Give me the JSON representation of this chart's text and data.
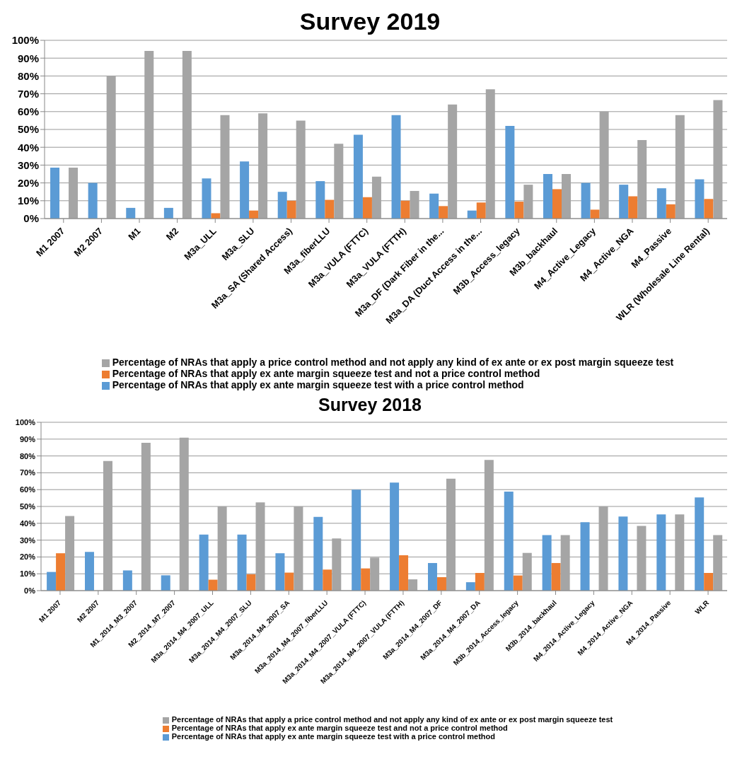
{
  "chart_data": [
    {
      "type": "bar",
      "title": "Survey 2019",
      "categories": [
        "M1 2007",
        "M2 2007",
        "M1",
        "M2",
        "M3a_ULL",
        "M3a_SLU",
        "M3a_SA (Shared Access)",
        "M3a_fiberLLU",
        "M3a_VULA (FTTC)",
        "M3a_VULA (FTTH)",
        "M3a_DF (Dark Fiber in the...",
        "M3a_DA (Duct Access in the...",
        "M3b_Access_legacy",
        "M3b_backhaul",
        "M4_Active_Legacy",
        "M4_Active_NGA",
        "M4_Passive",
        "WLR (Wholesale Line Rental)"
      ],
      "series": [
        {
          "name": "Percentage of NRAs that apply ex ante margin squeeze test with a price control method",
          "color": "#5b9bd5",
          "values": [
            28.6,
            20,
            6,
            6,
            22.5,
            32,
            15,
            21,
            47,
            58,
            14,
            4.5,
            52,
            25,
            20,
            19,
            17,
            22
          ]
        },
        {
          "name": "Percentage of NRAs that apply ex ante margin squeeze test and not a price control method",
          "color": "#ed7d31",
          "values": [
            0,
            0,
            0,
            0,
            3,
            4.5,
            10,
            10.5,
            12,
            10,
            7,
            9,
            9.5,
            16.5,
            5,
            12.5,
            8,
            11
          ]
        },
        {
          "name": "Percentage of NRAs that apply a price control method and not apply any kind of  ex ante or ex post margin squeeze test",
          "color": "#a5a5a5",
          "values": [
            28.6,
            80,
            94,
            94,
            58,
            59,
            55,
            42,
            23.5,
            15.5,
            64,
            72.5,
            19,
            25,
            60,
            44,
            58,
            66.5
          ]
        }
      ],
      "ylim": [
        0,
        100
      ],
      "yticks": [
        {
          "value": 0,
          "label": "0%"
        },
        {
          "value": 10,
          "label": "10%"
        },
        {
          "value": 20,
          "label": "20%"
        },
        {
          "value": 30,
          "label": "30%"
        },
        {
          "value": 40,
          "label": "40%"
        },
        {
          "value": 50,
          "label": "50%"
        },
        {
          "value": 60,
          "label": "60%"
        },
        {
          "value": 70,
          "label": "70%"
        },
        {
          "value": 80,
          "label": "80%"
        },
        {
          "value": 90,
          "label": "90%"
        },
        {
          "value": 100,
          "label": "100%"
        }
      ],
      "grid": "y",
      "legend": "bottom"
    },
    {
      "type": "bar",
      "title": "Survey 2018",
      "categories": [
        "M1 2007",
        "M2 2007",
        "M1_2014_M3_2007",
        "M2_2014_M7_2007",
        "M3a_2014_M4_2007_ULL",
        "M3a_2014_M4_2007_SLU",
        "M3a_2014_M4_2007_SA",
        "M3a_2014_M4_2007_fiberLLU",
        "M3a_2014_M4_2007_VULA (FTTC)",
        "M3a_2014_M4_2007_VULA (FTTH)",
        "M3a_2014_M4_2007_DF",
        "M3a_2014_M4_2007_DA",
        "M3b_2014_Access_legacy",
        "M3b_2014_backhaul",
        "M4_2014_Active_Legacy",
        "M4_2014_Active_NGA",
        "M4_2014_Passive",
        "WLR"
      ],
      "series": [
        {
          "name": "Percentage of NRAs that apply ex ante margin squeeze test with a price control method",
          "color": "#5b9bd5",
          "values": [
            11.1,
            23,
            12,
            9.1,
            33.3,
            33.3,
            22.2,
            43.8,
            60,
            64.2,
            16.4,
            5,
            58.8,
            33,
            40.6,
            44,
            45.3,
            55.4
          ]
        },
        {
          "name": "Percentage of NRAs that apply ex ante margin squeeze test and not a price control method",
          "color": "#ed7d31",
          "values": [
            22.2,
            0,
            0,
            0,
            6.5,
            9.7,
            10.7,
            12.5,
            13.2,
            21,
            8,
            10.5,
            9,
            16.4,
            0,
            0,
            0,
            10.5
          ]
        },
        {
          "name": "Percentage of NRAs that apply a price control method and not apply any kind of  ex ante or ex post margin squeeze test",
          "color": "#a5a5a5",
          "values": [
            44.3,
            77,
            87.8,
            90.9,
            50,
            52.4,
            50,
            31,
            19.6,
            6.7,
            66.5,
            77.6,
            22.4,
            33,
            50,
            38.4,
            45.3,
            33
          ]
        }
      ],
      "ylim": [
        0,
        100
      ],
      "yticks": [
        {
          "value": 0,
          "label": "0%"
        },
        {
          "value": 10,
          "label": "10%"
        },
        {
          "value": 20,
          "label": "20%"
        },
        {
          "value": 30,
          "label": "30%"
        },
        {
          "value": 40,
          "label": "40%"
        },
        {
          "value": 50,
          "label": "50%"
        },
        {
          "value": 60,
          "label": "60%"
        },
        {
          "value": 70,
          "label": "70%"
        },
        {
          "value": 80,
          "label": "80%"
        },
        {
          "value": 90,
          "label": "90%"
        },
        {
          "value": 100,
          "label": "100%"
        }
      ],
      "grid": "y",
      "legend": "bottom"
    }
  ]
}
